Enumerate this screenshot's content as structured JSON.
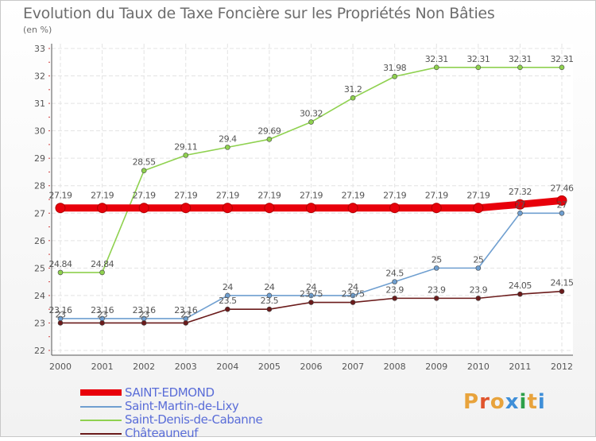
{
  "header": {
    "title": "Evolution du Taux de Taxe Foncière sur les Propriétés Non Bâties",
    "unit": "(en %)"
  },
  "logo": {
    "text": "Proxiti",
    "colors": [
      "#e8a33c",
      "#e0542c",
      "#e8a33c",
      "#3f8fd8",
      "#2ea04a",
      "#e8a33c",
      "#3f8fd8"
    ]
  },
  "chart_data": {
    "type": "line",
    "title": "Evolution du Taux de Taxe Foncière sur les Propriétés Non Bâties",
    "ylabel": "(en %)",
    "x": [
      "2000",
      "2001",
      "2002",
      "2003",
      "2004",
      "2005",
      "2006",
      "2007",
      "2008",
      "2009",
      "2010",
      "2011",
      "2012"
    ],
    "ylim": [
      22,
      33
    ],
    "yticks": [
      "22",
      "23",
      "24",
      "25",
      "26",
      "27",
      "28",
      "29",
      "30",
      "31",
      "32",
      "33"
    ],
    "grid": true,
    "legend_position": "bottom-left",
    "series": [
      {
        "name": "SAINT-EDMOND",
        "color": "#e8000b",
        "values": [
          27.19,
          27.19,
          27.19,
          27.19,
          27.19,
          27.19,
          27.19,
          27.19,
          27.19,
          27.19,
          27.19,
          27.32,
          27.46
        ],
        "labels": [
          "27.19",
          "27.19",
          "27.19",
          "27.19",
          "27.19",
          "27.19",
          "27.19",
          "27.19",
          "27.19",
          "27.19",
          "27.19",
          "27.32",
          "27.46"
        ]
      },
      {
        "name": "Saint-Martin-de-Lixy",
        "color": "#6f9fd0",
        "values": [
          23.16,
          23.16,
          23.16,
          23.16,
          24,
          24,
          24,
          24,
          24.5,
          25,
          25,
          27,
          27
        ],
        "labels": [
          "23.16",
          "23.16",
          "23.16",
          "23.16",
          "24",
          "24",
          "24",
          "24",
          "24.5",
          "25",
          "25",
          "27",
          "27"
        ]
      },
      {
        "name": "Saint-Denis-de-Cabanne",
        "color": "#8fd14f",
        "values": [
          24.84,
          24.84,
          28.55,
          29.11,
          29.4,
          29.69,
          30.32,
          31.2,
          31.98,
          32.31,
          32.31,
          32.31,
          32.31
        ],
        "labels": [
          "24.84",
          "24.84",
          "28.55",
          "29.11",
          "29.4",
          "29.69",
          "30.32",
          "31.2",
          "31.98",
          "32.31",
          "32.31",
          "32.31",
          "32.31"
        ]
      },
      {
        "name": "Châteauneuf",
        "color": "#6b1b1b",
        "values": [
          23,
          23,
          23,
          23,
          23.5,
          23.5,
          23.75,
          23.75,
          23.9,
          23.9,
          23.9,
          24.05,
          24.15
        ],
        "labels": [
          "23",
          "23",
          "23",
          "23",
          "23.5",
          "23.5",
          "23.75",
          "23.75",
          "23.9",
          "23.9",
          "23.9",
          "24.05",
          "24.15"
        ]
      }
    ]
  }
}
